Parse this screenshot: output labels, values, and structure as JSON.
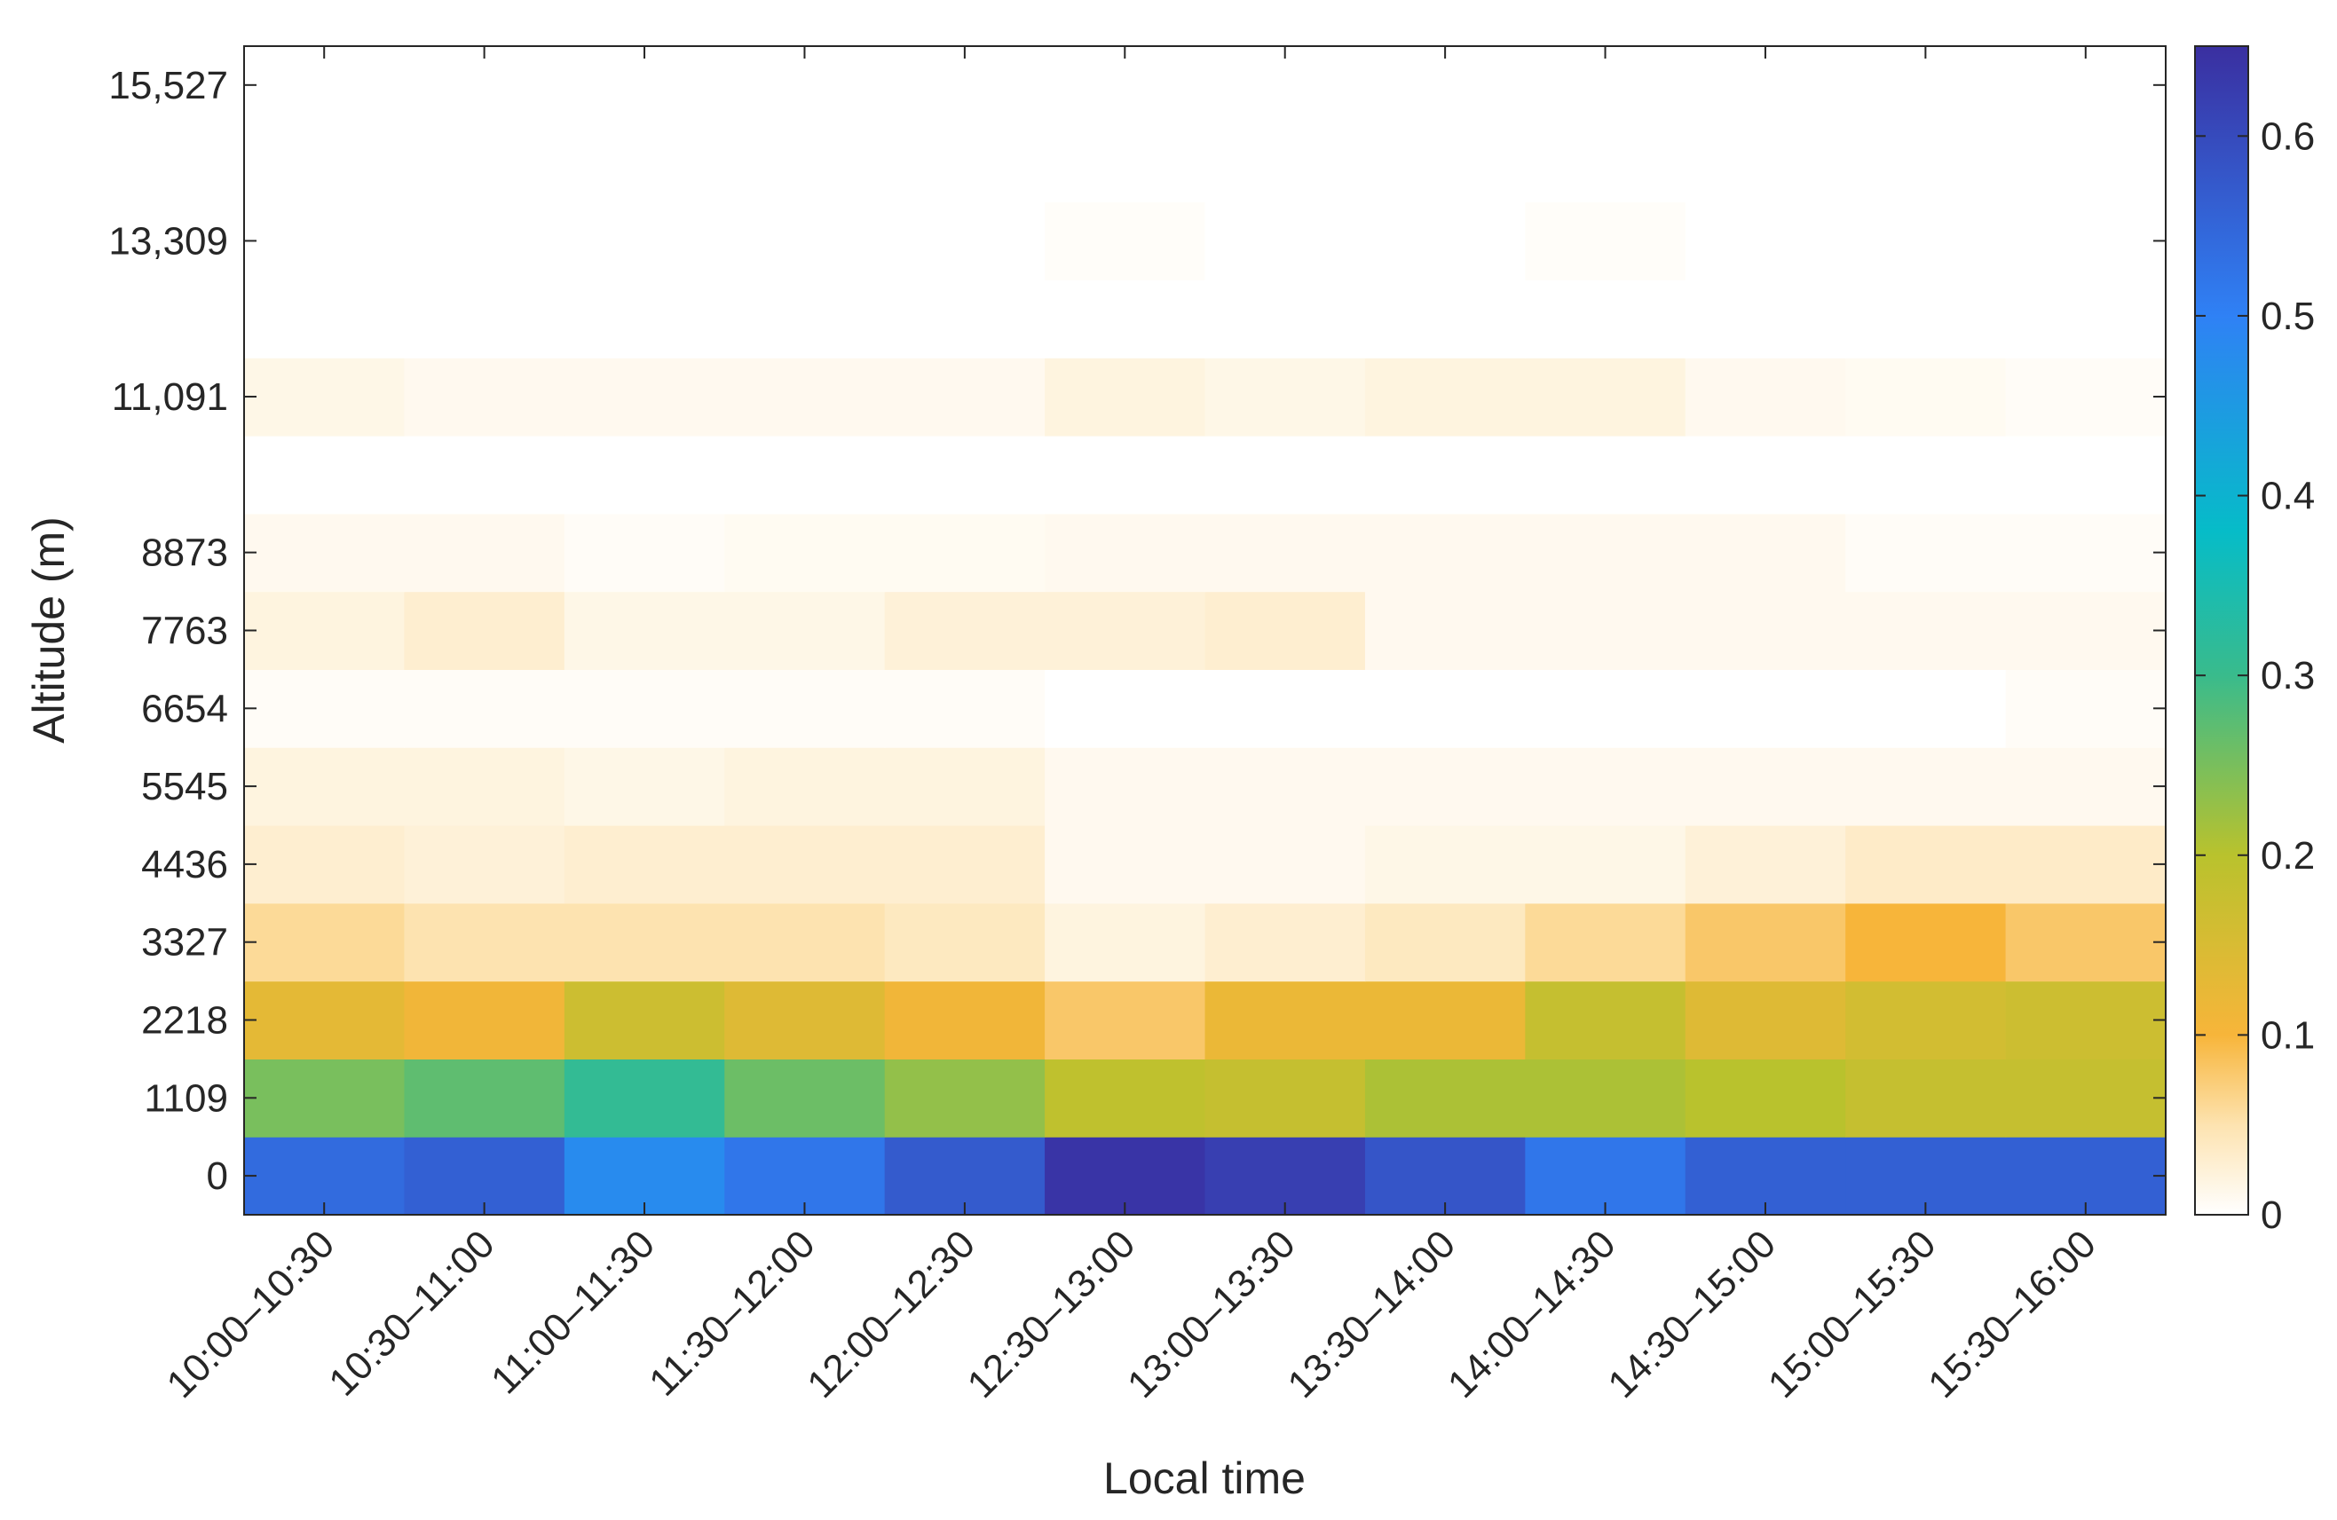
{
  "chart_data": {
    "type": "heatmap",
    "xlabel": "Local time",
    "ylabel": "Altitude (m)",
    "x_categories": [
      "10:00–10:30",
      "10:30–11:00",
      "11:00–11:30",
      "11:30–12:00",
      "12:00–12:30",
      "12:30–13:00",
      "13:00–13:30",
      "13:30–14:00",
      "14:00–14:30",
      "14:30–15:00",
      "15:00–15:30",
      "15:30–16:00"
    ],
    "y_rows": [
      0,
      1109,
      2218,
      3327,
      4436,
      5545,
      6654,
      7763,
      8873,
      9982,
      11091,
      12200,
      13309,
      14418,
      15527
    ],
    "y_tick_labels": [
      "0",
      "1109",
      "2218",
      "3327",
      "4436",
      "5545",
      "6654",
      "7763",
      "8873",
      "11,091",
      "13,309",
      "15,527"
    ],
    "y_tick_values": [
      0,
      1109,
      2218,
      3327,
      4436,
      5545,
      6654,
      7763,
      8873,
      11091,
      13309,
      15527
    ],
    "colorbar": {
      "range": [
        0,
        0.65
      ],
      "tick_values": [
        0,
        0.1,
        0.2,
        0.3,
        0.4,
        0.5,
        0.6
      ],
      "tick_labels": [
        "0",
        "0.1",
        "0.2",
        "0.3",
        "0.4",
        "0.5",
        "0.6"
      ],
      "colormap": [
        {
          "v": 0.0,
          "c": "#ffffff"
        },
        {
          "v": 0.05,
          "c": "#fde3b0"
        },
        {
          "v": 0.1,
          "c": "#f7b53a"
        },
        {
          "v": 0.2,
          "c": "#b9c22d"
        },
        {
          "v": 0.3,
          "c": "#39bb8c"
        },
        {
          "v": 0.38,
          "c": "#06bcc8"
        },
        {
          "v": 0.5,
          "c": "#2f81f5"
        },
        {
          "v": 0.65,
          "c": "#3a2fa0"
        }
      ]
    },
    "values": [
      [
        0.54,
        0.56,
        0.48,
        0.52,
        0.57,
        0.64,
        0.62,
        0.58,
        0.52,
        0.56,
        0.56,
        0.56
      ],
      [
        0.25,
        0.27,
        0.31,
        0.26,
        0.23,
        0.19,
        0.18,
        0.21,
        0.21,
        0.2,
        0.18,
        0.18
      ],
      [
        0.13,
        0.11,
        0.17,
        0.14,
        0.11,
        0.08,
        0.12,
        0.12,
        0.18,
        0.14,
        0.16,
        0.17
      ],
      [
        0.06,
        0.05,
        0.05,
        0.05,
        0.04,
        0.02,
        0.03,
        0.04,
        0.06,
        0.08,
        0.1,
        0.08
      ],
      [
        0.03,
        0.025,
        0.03,
        0.03,
        0.03,
        0.01,
        0.01,
        0.015,
        0.015,
        0.025,
        0.035,
        0.035
      ],
      [
        0.02,
        0.02,
        0.015,
        0.02,
        0.02,
        0.01,
        0.01,
        0.01,
        0.01,
        0.01,
        0.01,
        0.01
      ],
      [
        0.005,
        0.005,
        0.005,
        0.005,
        0.005,
        0.0,
        0.0,
        0.0,
        0.0,
        0.0,
        0.0,
        0.005
      ],
      [
        0.02,
        0.03,
        0.015,
        0.015,
        0.025,
        0.025,
        0.03,
        0.01,
        0.01,
        0.01,
        0.01,
        0.01
      ],
      [
        0.01,
        0.01,
        0.005,
        0.008,
        0.008,
        0.01,
        0.01,
        0.01,
        0.01,
        0.01,
        0.005,
        0.005
      ],
      [
        0.0,
        0.0,
        0.0,
        0.0,
        0.0,
        0.0,
        0.0,
        0.0,
        0.0,
        0.0,
        0.0,
        0.0
      ],
      [
        0.015,
        0.01,
        0.01,
        0.01,
        0.01,
        0.02,
        0.015,
        0.02,
        0.02,
        0.01,
        0.008,
        0.005
      ],
      [
        0.0,
        0.0,
        0.0,
        0.0,
        0.0,
        0.0,
        0.0,
        0.0,
        0.0,
        0.0,
        0.0,
        0.0
      ],
      [
        0.0,
        0.0,
        0.0,
        0.0,
        0.0,
        0.004,
        0.0,
        0.0,
        0.004,
        0.0,
        0.0,
        0.0
      ],
      [
        0.0,
        0.0,
        0.0,
        0.0,
        0.0,
        0.0,
        0.0,
        0.0,
        0.0,
        0.0,
        0.0,
        0.0
      ],
      [
        0.0,
        0.0,
        0.0,
        0.0,
        0.0,
        0.0,
        0.0,
        0.0,
        0.0,
        0.0,
        0.0,
        0.0
      ]
    ]
  }
}
